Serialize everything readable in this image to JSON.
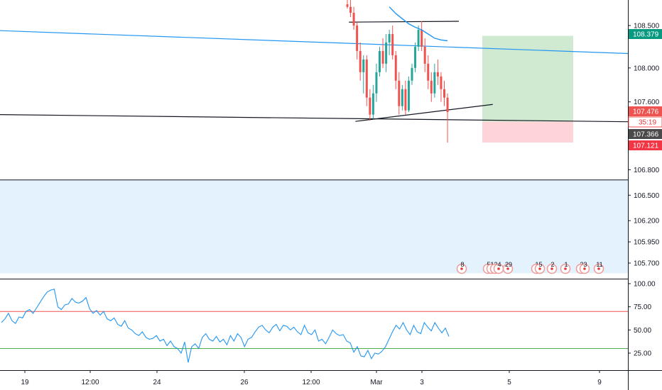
{
  "chart_data": [
    {
      "type": "candlestick",
      "price_axis": {
        "ticks": [
          "108.500",
          "108.000",
          "107.600",
          "106.800",
          "106.500",
          "106.200",
          "105.950",
          "105.700"
        ],
        "tick_values": [
          108.5,
          108.0,
          107.6,
          106.8,
          106.5,
          106.2,
          105.95,
          105.7
        ]
      },
      "time_axis": {
        "labels": [
          "19",
          "12:00",
          "24",
          "26",
          "12:00",
          "Mar",
          "3",
          "5",
          "9"
        ]
      },
      "price_tags": [
        {
          "label": "108.379",
          "value": 108.379,
          "role": "take-profit",
          "color": "#089981"
        },
        {
          "label": "107.476",
          "value": 107.476,
          "role": "current-price",
          "color": "#ef5350"
        },
        {
          "label": "35:19",
          "value": 107.42,
          "role": "bar-countdown",
          "color": "#ef5350"
        },
        {
          "label": "107.366",
          "value": 107.366,
          "role": "support-line",
          "color": "#4a4a4a"
        },
        {
          "label": "107.121",
          "value": 107.121,
          "role": "stop-loss",
          "color": "#f23645"
        }
      ],
      "candles": [
        {
          "o": 108.75,
          "h": 108.85,
          "l": 108.7,
          "c": 108.72
        },
        {
          "o": 108.72,
          "h": 108.8,
          "l": 108.6,
          "c": 108.65
        },
        {
          "o": 108.65,
          "h": 108.72,
          "l": 108.45,
          "c": 108.5
        },
        {
          "o": 108.5,
          "h": 108.55,
          "l": 108.1,
          "c": 108.2
        },
        {
          "o": 108.2,
          "h": 108.3,
          "l": 107.85,
          "c": 107.95
        },
        {
          "o": 107.95,
          "h": 108.15,
          "l": 107.7,
          "c": 108.1
        },
        {
          "o": 108.1,
          "h": 108.15,
          "l": 107.55,
          "c": 107.65
        },
        {
          "o": 107.65,
          "h": 107.75,
          "l": 107.38,
          "c": 107.45
        },
        {
          "o": 107.45,
          "h": 107.8,
          "l": 107.4,
          "c": 107.7
        },
        {
          "o": 107.7,
          "h": 108.05,
          "l": 107.6,
          "c": 107.95
        },
        {
          "o": 107.95,
          "h": 108.25,
          "l": 107.9,
          "c": 108.2
        },
        {
          "o": 108.2,
          "h": 108.35,
          "l": 108.0,
          "c": 108.05
        },
        {
          "o": 108.05,
          "h": 108.4,
          "l": 107.95,
          "c": 108.3
        },
        {
          "o": 108.3,
          "h": 108.45,
          "l": 108.15,
          "c": 108.4
        },
        {
          "o": 108.4,
          "h": 108.5,
          "l": 108.1,
          "c": 108.15
        },
        {
          "o": 108.15,
          "h": 108.2,
          "l": 107.75,
          "c": 107.85
        },
        {
          "o": 107.85,
          "h": 107.95,
          "l": 107.45,
          "c": 107.55
        },
        {
          "o": 107.55,
          "h": 107.8,
          "l": 107.5,
          "c": 107.75
        },
        {
          "o": 107.75,
          "h": 107.85,
          "l": 107.45,
          "c": 107.5
        },
        {
          "o": 107.5,
          "h": 107.9,
          "l": 107.48,
          "c": 107.85
        },
        {
          "o": 107.85,
          "h": 108.05,
          "l": 107.8,
          "c": 108.0
        },
        {
          "o": 108.0,
          "h": 108.3,
          "l": 107.95,
          "c": 108.25
        },
        {
          "o": 108.25,
          "h": 108.5,
          "l": 108.2,
          "c": 108.45
        },
        {
          "o": 108.45,
          "h": 108.55,
          "l": 108.2,
          "c": 108.25
        },
        {
          "o": 108.25,
          "h": 108.35,
          "l": 107.95,
          "c": 108.05
        },
        {
          "o": 108.05,
          "h": 108.15,
          "l": 107.75,
          "c": 107.85
        },
        {
          "o": 107.85,
          "h": 107.95,
          "l": 107.6,
          "c": 107.7
        },
        {
          "o": 107.7,
          "h": 108.05,
          "l": 107.65,
          "c": 107.95
        },
        {
          "o": 107.95,
          "h": 108.1,
          "l": 107.8,
          "c": 107.9
        },
        {
          "o": 107.9,
          "h": 107.95,
          "l": 107.6,
          "c": 107.75
        },
        {
          "o": 107.75,
          "h": 107.85,
          "l": 107.55,
          "c": 107.65
        },
        {
          "o": 107.65,
          "h": 107.7,
          "l": 107.12,
          "c": 107.48
        }
      ],
      "moving_average": [
        108.72,
        108.64,
        108.58,
        108.52,
        108.48,
        108.45,
        108.4,
        108.35,
        108.33,
        108.32
      ],
      "trend_lines": [
        {
          "name": "descending-blue-line",
          "color": "#2196f3",
          "from": {
            "x_frac": 0.0,
            "v": 108.44
          },
          "to": {
            "x_frac": 1.0,
            "v": 108.17
          }
        },
        {
          "name": "descending-black-support-line",
          "color": "#131722",
          "from": {
            "x_frac": 0.0,
            "v": 107.45
          },
          "to": {
            "x_frac": 1.0,
            "v": 107.366
          }
        },
        {
          "name": "ascending-black-triangle-line",
          "color": "#131722",
          "from": {
            "candle": 2.5,
            "v": 107.37
          },
          "to": {
            "candle": 45,
            "v": 107.57
          }
        },
        {
          "name": "horizontal-resistance-line",
          "color": "#131722",
          "from": {
            "candle": 0.5,
            "v": 108.54
          },
          "to": {
            "candle": 34.5,
            "v": 108.55
          }
        }
      ],
      "position_tool": {
        "entry": 107.366,
        "take_profit": 108.379,
        "stop_loss": 107.121
      },
      "zone_band": {
        "from": 106.68,
        "to": 105.58,
        "color": "#e3f2fd"
      },
      "events": [
        "8",
        "5",
        "1",
        "2",
        "4",
        "29",
        "1",
        "5",
        "2",
        "1",
        "2",
        "3",
        "11"
      ]
    },
    {
      "type": "line",
      "name": "rsi",
      "ylim": [
        8,
        110
      ],
      "ticks": [
        "100.00",
        "75.00",
        "50.00",
        "25.00"
      ],
      "tick_values": [
        100,
        75,
        50,
        25
      ],
      "upper_band": 70,
      "lower_band": 30,
      "values": [
        58,
        62,
        68,
        60,
        57,
        64,
        63,
        70,
        72,
        68,
        74,
        80,
        86,
        91,
        93,
        94,
        75,
        72,
        77,
        78,
        84,
        80,
        79,
        81,
        85,
        73,
        68,
        71,
        66,
        70,
        62,
        60,
        63,
        56,
        54,
        60,
        52,
        50,
        46,
        44,
        48,
        42,
        40,
        41,
        44,
        38,
        40,
        33,
        38,
        32,
        30,
        25,
        37,
        15,
        32,
        35,
        30,
        42,
        46,
        40,
        38,
        43,
        37,
        40,
        34,
        44,
        38,
        46,
        42,
        32,
        40,
        42,
        48,
        53,
        55,
        50,
        47,
        53,
        56,
        49,
        55,
        54,
        50,
        53,
        48,
        45,
        55,
        47,
        45,
        50,
        38,
        40,
        35,
        42,
        50,
        46,
        44,
        45,
        38,
        36,
        26,
        32,
        22,
        21,
        28,
        19,
        25,
        24,
        27,
        32,
        40,
        48,
        55,
        51,
        58,
        50,
        45,
        55,
        48,
        46,
        58,
        53,
        49,
        58,
        52,
        47,
        52,
        43
      ]
    }
  ]
}
